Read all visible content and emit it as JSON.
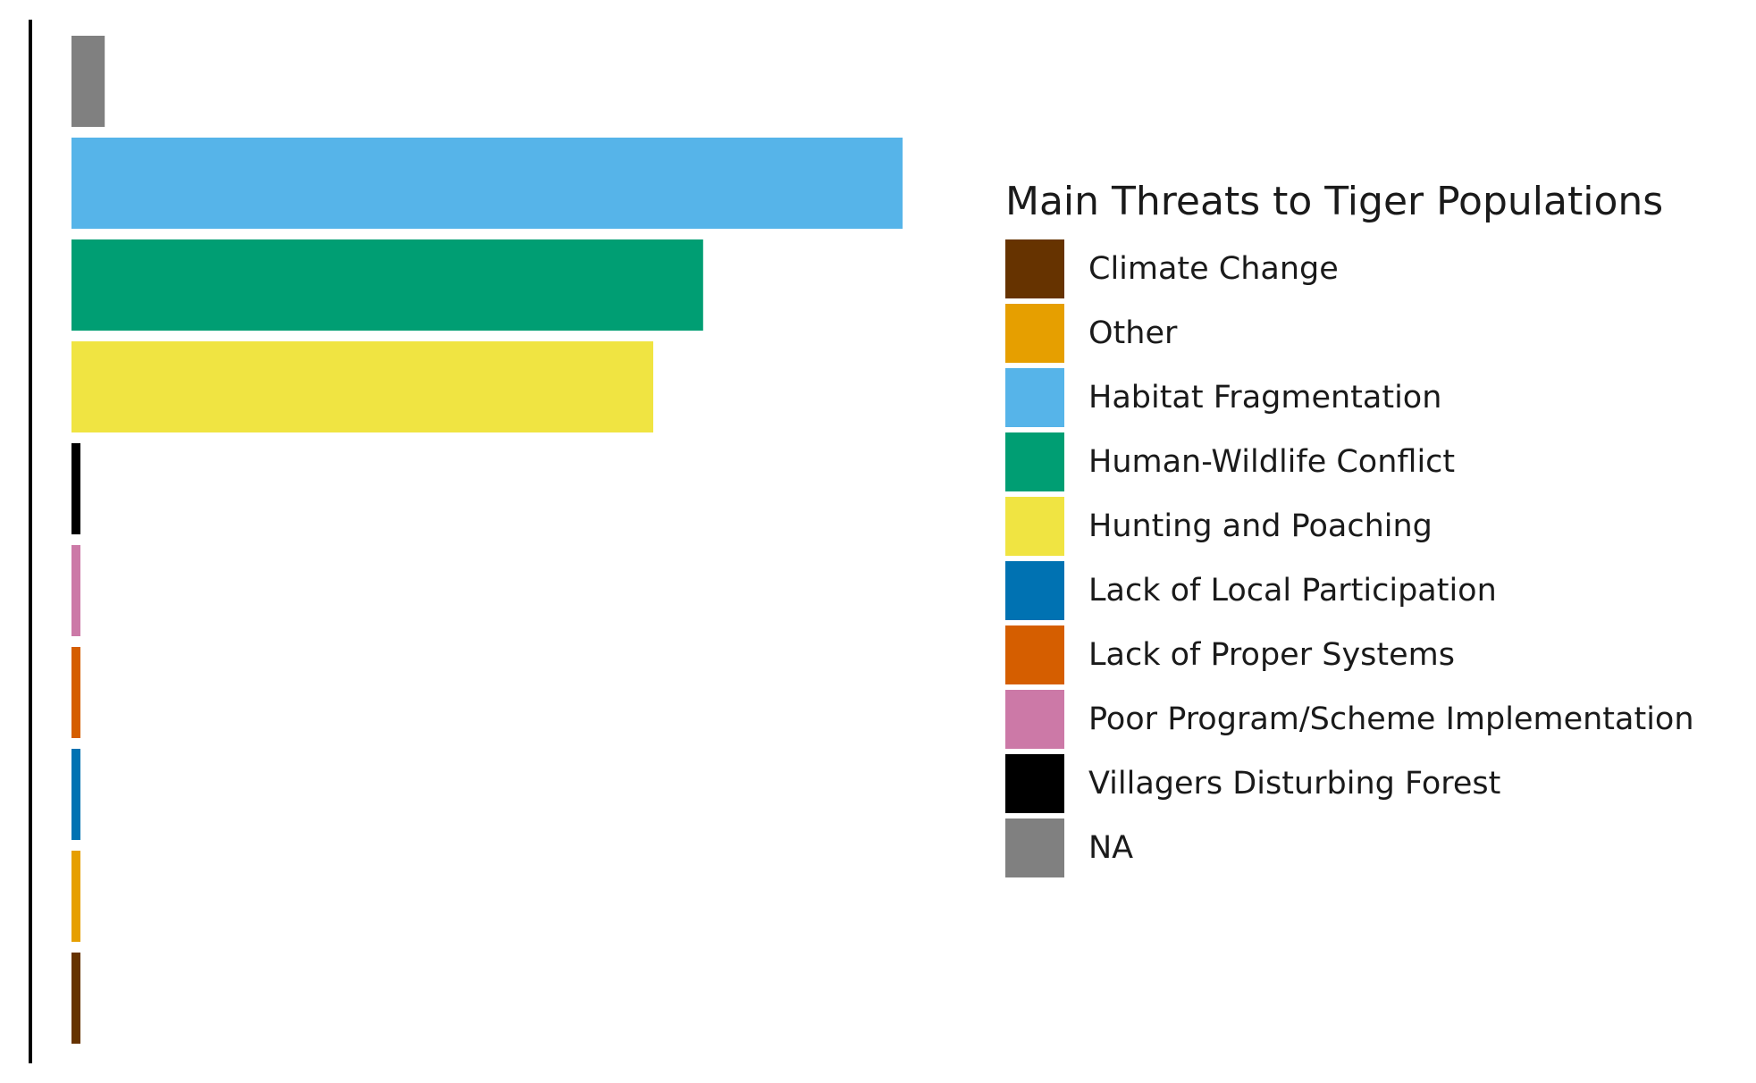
{
  "chart_data": {
    "type": "bar",
    "orientation": "horizontal",
    "categories": [
      "NA",
      "Habitat Fragmentation",
      "Human-Wildlife Conflict",
      "Hunting and Poaching",
      "Villagers Disturbing Forest",
      "Poor Program/Scheme Implementation",
      "Lack of Proper Systems",
      "Lack of Local Participation",
      "Other",
      "Climate Change"
    ],
    "values": [
      4,
      100,
      76,
      70,
      1,
      1,
      1,
      1,
      1,
      1
    ],
    "colors": [
      "#808080",
      "#56B4E9",
      "#009E73",
      "#F0E442",
      "#000000",
      "#CC79A7",
      "#D55E00",
      "#0072B2",
      "#E69F00",
      "#663300"
    ],
    "xlim": [
      0,
      100
    ],
    "grid": false,
    "axis_labels_shown": false
  },
  "legend": {
    "title": "Main Threats to Tiger Populations",
    "position": "right",
    "items": [
      {
        "label": "Climate Change",
        "color": "#663300"
      },
      {
        "label": "Other",
        "color": "#E69F00"
      },
      {
        "label": "Habitat Fragmentation",
        "color": "#56B4E9"
      },
      {
        "label": "Human-Wildlife Conflict",
        "color": "#009E73"
      },
      {
        "label": "Hunting and Poaching",
        "color": "#F0E442"
      },
      {
        "label": "Lack of Local Participation",
        "color": "#0072B2"
      },
      {
        "label": "Lack of Proper Systems",
        "color": "#D55E00"
      },
      {
        "label": "Poor Program/Scheme Implementation",
        "color": "#CC79A7"
      },
      {
        "label": "Villagers Disturbing Forest",
        "color": "#000000"
      },
      {
        "label": "NA",
        "color": "#808080"
      }
    ]
  }
}
